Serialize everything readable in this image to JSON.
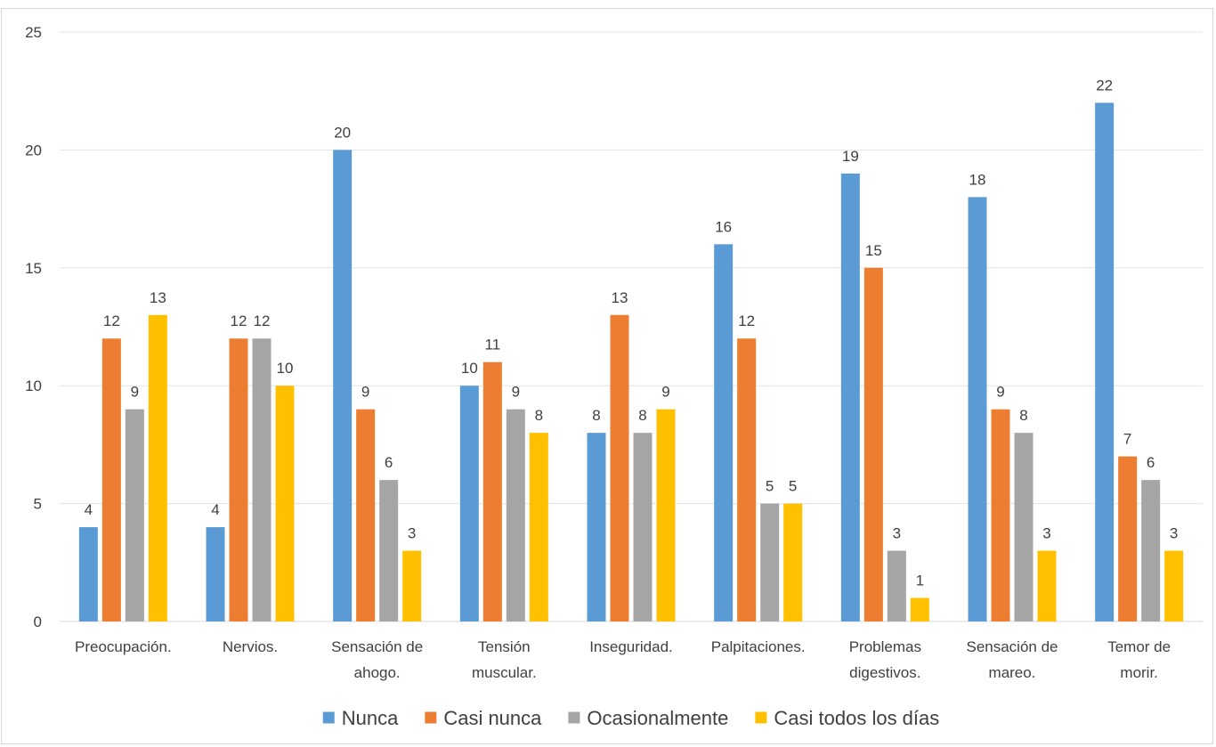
{
  "chart_data": {
    "type": "bar",
    "categories": [
      [
        "Preocupación."
      ],
      [
        "Nervios."
      ],
      [
        "Sensación de",
        "ahogo."
      ],
      [
        "Tensión",
        "muscular."
      ],
      [
        "Inseguridad."
      ],
      [
        "Palpitaciones."
      ],
      [
        "Problemas",
        "digestivos."
      ],
      [
        "Sensación de",
        "mareo."
      ],
      [
        "Temor de",
        "morir."
      ]
    ],
    "series": [
      {
        "name": "Nunca",
        "color": "#5b9bd5",
        "values": [
          4,
          4,
          20,
          10,
          8,
          16,
          19,
          18,
          22
        ]
      },
      {
        "name": "Casi nunca",
        "color": "#ed7d31",
        "values": [
          12,
          12,
          9,
          11,
          13,
          12,
          15,
          9,
          7
        ]
      },
      {
        "name": "Ocasionalmente",
        "color": "#a5a5a5",
        "values": [
          9,
          12,
          6,
          9,
          8,
          5,
          3,
          8,
          6
        ]
      },
      {
        "name": "Casi todos los días",
        "color": "#ffc000",
        "values": [
          13,
          10,
          3,
          8,
          9,
          5,
          1,
          3,
          3
        ]
      }
    ],
    "ylim": [
      0,
      25
    ],
    "yticks": [
      0,
      5,
      10,
      15,
      20,
      25
    ],
    "grid": true,
    "data_labels": true,
    "legend_position": "bottom",
    "title": "",
    "xlabel": "",
    "ylabel": ""
  }
}
